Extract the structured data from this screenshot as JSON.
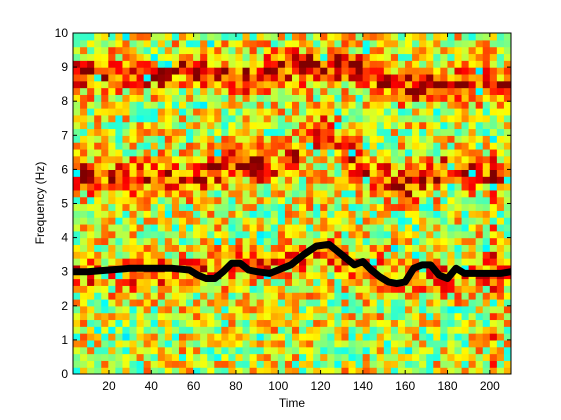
{
  "chart_data": {
    "type": "heatmap",
    "title": "",
    "xlabel": "Time",
    "ylabel": "Frequency (Hz)",
    "xlim": [
      3,
      210
    ],
    "ylim": [
      0,
      10
    ],
    "xticks": [
      20,
      40,
      60,
      80,
      100,
      120,
      140,
      160,
      180,
      200
    ],
    "yticks": [
      0,
      1,
      2,
      3,
      4,
      5,
      6,
      7,
      8,
      9,
      10
    ],
    "xtick_labels": [
      "20",
      "40",
      "60",
      "80",
      "100",
      "120",
      "140",
      "160",
      "180",
      "200"
    ],
    "ytick_labels": [
      "0",
      "1",
      "2",
      "3",
      "4",
      "5",
      "6",
      "7",
      "8",
      "9",
      "10"
    ],
    "colormap": "jet",
    "background_color": "#ff9a00",
    "grid": false,
    "heatmap_bands": [
      {
        "frequency_path": [
          [
            3,
            8.8
          ],
          [
            40,
            8.8
          ],
          [
            60,
            9.0
          ],
          [
            80,
            8.6
          ],
          [
            100,
            9.0
          ],
          [
            140,
            9.0
          ],
          [
            160,
            8.4
          ],
          [
            180,
            8.5
          ],
          [
            210,
            8.4
          ]
        ],
        "strength": 0.95
      },
      {
        "frequency_path": [
          [
            3,
            5.8
          ],
          [
            40,
            5.8
          ],
          [
            60,
            5.7
          ],
          [
            80,
            6.2
          ],
          [
            100,
            6.0
          ],
          [
            120,
            7.2
          ],
          [
            140,
            6.0
          ],
          [
            160,
            5.5
          ],
          [
            180,
            6.0
          ],
          [
            210,
            5.8
          ]
        ],
        "strength": 0.85
      },
      {
        "frequency_path": [
          [
            3,
            2.9
          ],
          [
            60,
            3.0
          ],
          [
            80,
            3.1
          ],
          [
            120,
            3.6
          ],
          [
            160,
            2.8
          ],
          [
            210,
            3.0
          ]
        ],
        "strength": 0.55
      }
    ],
    "series": [
      {
        "type": "line",
        "color": "#000000",
        "x": [
          3,
          10,
          20,
          30,
          40,
          50,
          58,
          62,
          66,
          70,
          74,
          78,
          82,
          86,
          90,
          96,
          100,
          106,
          112,
          118,
          124,
          128,
          132,
          136,
          140,
          144,
          148,
          152,
          156,
          160,
          164,
          168,
          172,
          176,
          180,
          184,
          188,
          195,
          205,
          210
        ],
        "y": [
          3.0,
          3.0,
          3.05,
          3.1,
          3.1,
          3.1,
          3.05,
          2.9,
          2.8,
          2.8,
          3.0,
          3.25,
          3.25,
          3.05,
          3.0,
          2.95,
          3.05,
          3.2,
          3.5,
          3.75,
          3.8,
          3.6,
          3.4,
          3.2,
          3.3,
          3.05,
          2.85,
          2.7,
          2.65,
          2.7,
          3.1,
          3.2,
          3.2,
          2.9,
          2.8,
          3.1,
          2.95,
          2.95,
          2.95,
          3.0
        ]
      }
    ]
  }
}
